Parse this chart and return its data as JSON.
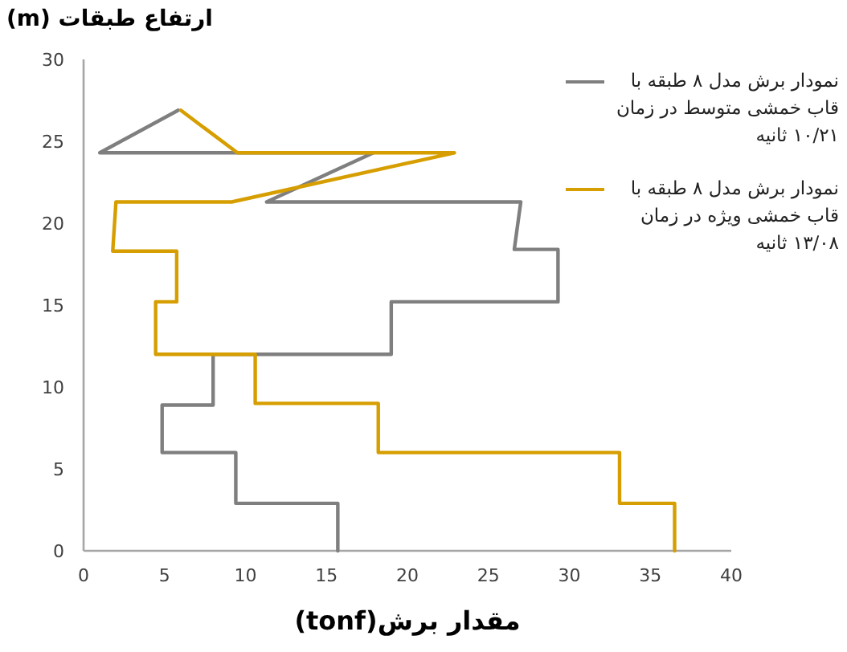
{
  "chart_data": {
    "type": "line",
    "ylabel": "ارتفاع طبقات (m)",
    "xlabel": "مقدار برش(tonf)",
    "xlim": [
      0,
      40
    ],
    "xticks": [
      0,
      5,
      10,
      15,
      20,
      25,
      30,
      35,
      40
    ],
    "ylim": [
      0,
      30
    ],
    "yticks": [
      0,
      5,
      10,
      15,
      20,
      25,
      30
    ],
    "grid": false,
    "legend": "right",
    "marker": "none",
    "line_style": "solid",
    "series": [
      {
        "name": "نمودار برش مدل ۸ طبقه با قاب خمشی متوسط در زمان ۱۰/۲۱ ثانیه",
        "color": "#7f7f7f",
        "x": [
          15.7,
          15.7,
          9.4,
          9.4,
          4.85,
          4.85,
          8.0,
          8.0,
          19.0,
          19.0,
          29.3,
          29.3,
          26.6,
          27.0,
          11.3,
          17.9,
          1.0,
          5.85
        ],
        "values": [
          0,
          2.9,
          2.9,
          6.0,
          6.0,
          8.9,
          8.9,
          12.0,
          12.0,
          15.2,
          15.2,
          18.4,
          18.4,
          21.3,
          21.3,
          24.3,
          24.3,
          26.9
        ]
      },
      {
        "name": "نمودار برش مدل ۸ طبقه با قاب خمشی ویژه در زمان ۱۳/۰۸ ثانیه",
        "color": "#d69e00",
        "x": [
          36.5,
          36.5,
          33.1,
          33.1,
          18.2,
          18.2,
          10.6,
          10.6,
          4.45,
          4.45,
          5.75,
          5.75,
          1.8,
          2.0,
          9.15,
          22.9,
          9.5,
          6.0
        ],
        "values": [
          0,
          2.9,
          2.9,
          6.0,
          6.0,
          9.0,
          9.0,
          12.0,
          12.0,
          15.2,
          15.2,
          18.3,
          18.3,
          21.3,
          21.3,
          24.3,
          24.3,
          26.9
        ]
      }
    ]
  }
}
